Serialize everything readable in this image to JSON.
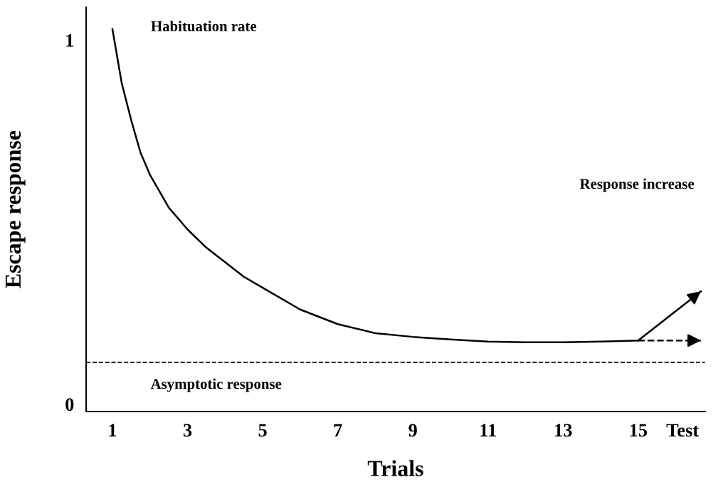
{
  "chart_data": {
    "type": "line",
    "xlabel": "Trials",
    "ylabel": "Escape response",
    "xlim": [
      0.3,
      16.78
    ],
    "ylim": [
      -0.02,
      1.09
    ],
    "xticks": [
      1,
      3,
      5,
      7,
      9,
      11,
      13,
      15,
      {
        "value": 16.18,
        "label": "Test"
      }
    ],
    "yticks": [
      0,
      1
    ],
    "grid": false,
    "legend": false,
    "marker": "none",
    "series": [
      {
        "color": "#000000",
        "line_style": "solid",
        "x": [
          1,
          1.25,
          1.5,
          1.75,
          2,
          2.5,
          3,
          3.5,
          4,
          4.5,
          5,
          6,
          7,
          8,
          9,
          10,
          11,
          12,
          13,
          14,
          15
        ],
        "values": [
          1.03,
          0.88,
          0.78,
          0.69,
          0.63,
          0.54,
          0.48,
          0.43,
          0.39,
          0.35,
          0.32,
          0.26,
          0.22,
          0.195,
          0.185,
          0.178,
          0.172,
          0.17,
          0.17,
          0.172,
          0.175
        ]
      },
      {
        "color": "#000000",
        "line_style": "dashed",
        "x": [
          15,
          16.67
        ],
        "values": [
          0.175,
          0.175
        ]
      },
      {
        "color": "#000000",
        "line_style": "solid",
        "x": [
          15,
          16.67
        ],
        "values": [
          0.175,
          0.31
        ]
      }
    ],
    "ref_lines": [
      {
        "axis": "y",
        "value": 0.115,
        "line_style": "dashed",
        "color": "#000000"
      }
    ],
    "annotations": [
      "Habituation rate",
      "Response increase",
      "Asymptotic response"
    ]
  }
}
